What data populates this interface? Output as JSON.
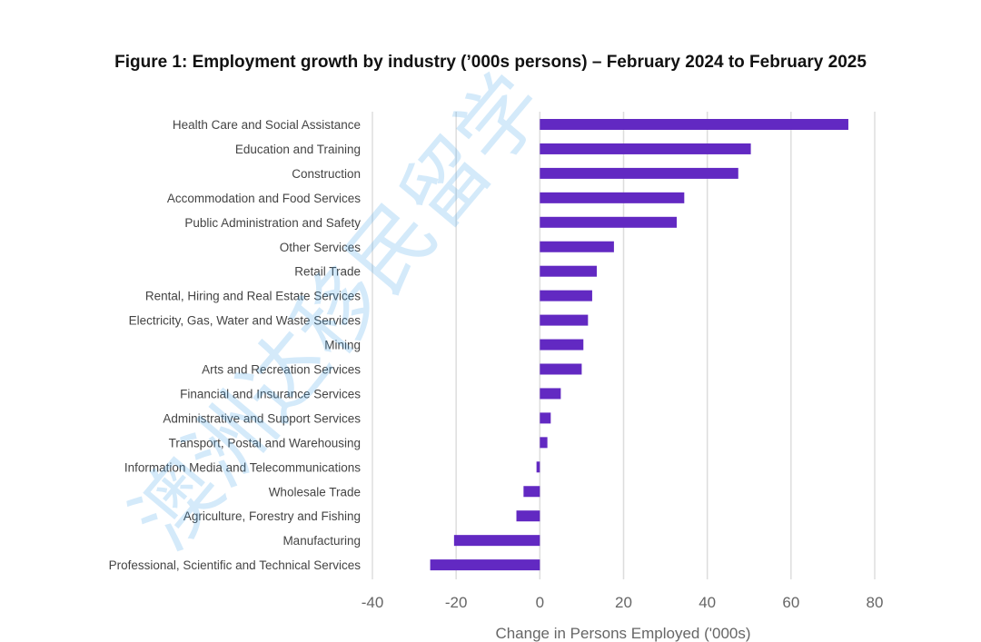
{
  "chart_data": {
    "type": "bar",
    "orientation": "horizontal",
    "title": "Figure 1: Employment growth by industry (’000s persons) – February 2024 to February 2025",
    "xlabel": "Change in Persons Employed ('000s)",
    "ylabel": "",
    "xlim": [
      -40,
      80
    ],
    "xticks": [
      -40,
      -20,
      0,
      20,
      40,
      60,
      80
    ],
    "grid": true,
    "bar_color": "#6229c2",
    "categories": [
      "Health Care and Social Assistance",
      "Education and Training",
      "Construction",
      "Accommodation and Food Services",
      "Public Administration and Safety",
      "Other Services",
      "Retail Trade",
      "Rental, Hiring and Real Estate Services",
      "Electricity, Gas, Water and Waste Services",
      "Mining",
      "Arts and Recreation Services",
      "Financial and Insurance Services",
      "Administrative and Support Services",
      "Transport, Postal and Warehousing",
      "Information Media and Telecommunications",
      "Wholesale Trade",
      "Agriculture, Forestry and Fishing",
      "Manufacturing",
      "Professional, Scientific and Technical Services"
    ],
    "values": [
      73.7,
      50.4,
      47.4,
      34.5,
      32.7,
      17.7,
      13.6,
      12.5,
      11.5,
      10.4,
      10.0,
      5.0,
      2.6,
      1.8,
      -0.8,
      -3.9,
      -5.6,
      -20.5,
      -26.2
    ]
  },
  "watermark": "澳洲达移民留学"
}
